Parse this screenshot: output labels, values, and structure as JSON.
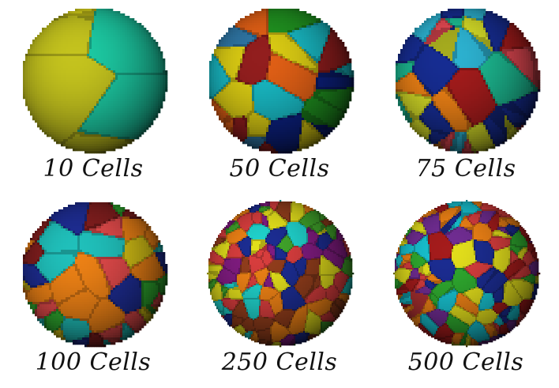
{
  "figure": {
    "panels": [
      {
        "label": "10 Cells",
        "cells": 10,
        "palette": [
          "#d8d21a",
          "#1bbf9a",
          "#9b3a3a",
          "#e07a14",
          "#b9b81c",
          "#2ea57d"
        ]
      },
      {
        "label": "50 Cells",
        "cells": 50,
        "palette": [
          "#1e8a1e",
          "#0b1f7a",
          "#d45a14",
          "#2c6f9b",
          "#cdbf12",
          "#8a1c1c",
          "#17aeb8"
        ]
      },
      {
        "label": "75 Cells",
        "cells": 75,
        "palette": [
          "#9b1a1a",
          "#1bb08a",
          "#152a8a",
          "#e07a14",
          "#c8cf25",
          "#d6444d",
          "#2aa8c5"
        ]
      },
      {
        "label": "100 Cells",
        "cells": 100,
        "palette": [
          "#d34545",
          "#1c2a8a",
          "#2ca02c",
          "#c7b414",
          "#7a1c1c",
          "#1eb5b0",
          "#e07a14"
        ]
      },
      {
        "label": "250 Cells",
        "cells": 250,
        "palette": [
          "#3d9b28",
          "#1a2a8a",
          "#d6d21a",
          "#8a3a1a",
          "#1ec6c0",
          "#e07a14",
          "#7a1a7a",
          "#cc3a3a"
        ]
      },
      {
        "label": "500 Cells",
        "cells": 500,
        "palette": [
          "#16b6c4",
          "#1a2a8a",
          "#e07a14",
          "#d6d21a",
          "#9b1a1a",
          "#2ca02c",
          "#cc3a3a",
          "#6a2a8a"
        ]
      }
    ]
  }
}
